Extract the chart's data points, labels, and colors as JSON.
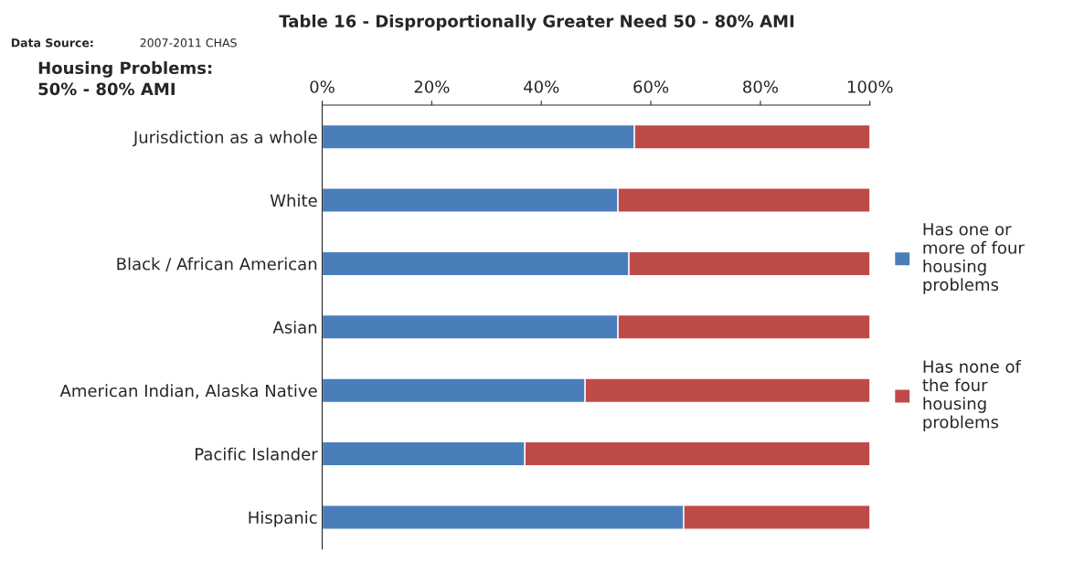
{
  "chart_data": {
    "type": "bar",
    "orientation": "horizontal",
    "stacked": true,
    "title": "Table 16 - Disproportionally Greater Need 50 - 80% AMI",
    "subtitle": "Housing Problems:\n50% - 80% AMI",
    "annotations": [
      "Data Source:",
      "2007-2011 CHAS"
    ],
    "categories": [
      "Jurisdiction as a whole",
      "White",
      "Black / African American",
      "Asian",
      "American Indian, Alaska Native",
      "Pacific Islander",
      "Hispanic"
    ],
    "series": [
      {
        "name": "Has one or more of four housing problems",
        "color": "#4a7ebb",
        "values": [
          57,
          54,
          56,
          54,
          48,
          37,
          66
        ]
      },
      {
        "name": "Has none of the four housing problems",
        "color": "#be4b48",
        "values": [
          43,
          46,
          44,
          46,
          52,
          63,
          34
        ]
      }
    ],
    "xlim": [
      0,
      100
    ],
    "xticks": [
      {
        "value": 0,
        "label": "0%"
      },
      {
        "value": 20,
        "label": "20%"
      },
      {
        "value": 40,
        "label": "40%"
      },
      {
        "value": 60,
        "label": "60%"
      },
      {
        "value": 80,
        "label": "80%"
      },
      {
        "value": 100,
        "label": "100%"
      }
    ],
    "legend": "right"
  }
}
